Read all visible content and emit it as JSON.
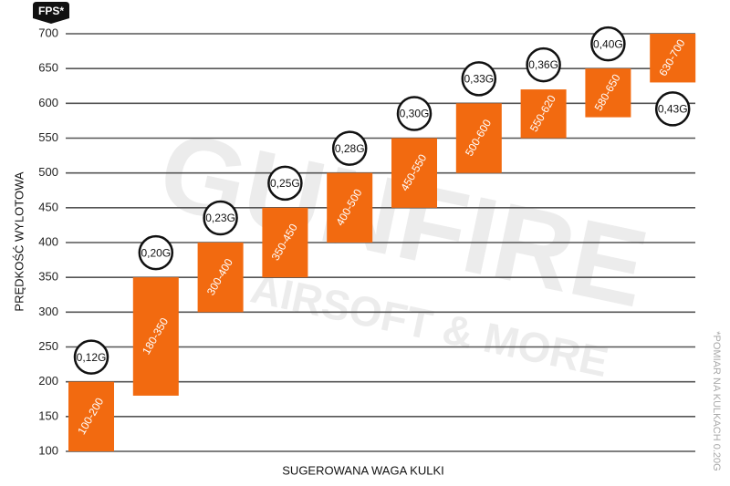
{
  "chart_data": {
    "type": "floating-bar",
    "unit_badge": "FPS*",
    "ylabel": "PRĘDKOŚĆ WYLOTOWA",
    "xlabel": "SUGEROWANA WAGA KULKI",
    "note": "*POMIAR NA KULKACH 0.20G",
    "watermark": [
      "GUNFIRE",
      "AIRSOFT & MORE"
    ],
    "categories": [
      "0,12G",
      "0,20G",
      "0,23G",
      "0,25G",
      "0,28G",
      "0,30G",
      "0,33G",
      "0,36G",
      "0,40G",
      "0,43G"
    ],
    "lows": [
      100,
      180,
      300,
      350,
      400,
      450,
      500,
      550,
      580,
      630
    ],
    "highs": [
      200,
      350,
      400,
      450,
      500,
      550,
      600,
      620,
      650,
      700
    ],
    "value_labels": [
      "100-200",
      "180-350",
      "300-400",
      "350-450",
      "400-500",
      "450-550",
      "500-600",
      "550-620",
      "580-650",
      "630-700"
    ],
    "color": "#f26a10",
    "ylim": [
      100,
      700
    ],
    "yticks": [
      100,
      150,
      200,
      250,
      300,
      350,
      400,
      450,
      500,
      550,
      600,
      650,
      700
    ],
    "grid": true
  }
}
